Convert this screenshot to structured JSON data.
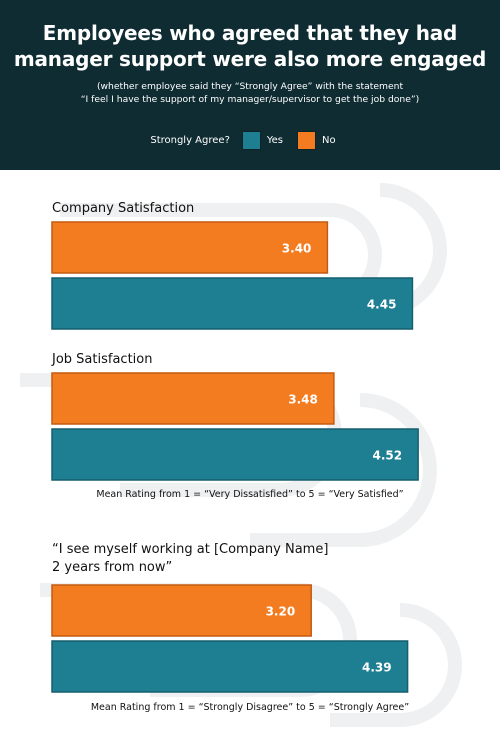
{
  "header": {
    "title_line1": "Employees who agreed that they had",
    "title_line2": "manager support were also more engaged",
    "subtitle_line1": "(whether employee said they “Strongly Agree” with the statement",
    "subtitle_line2": "“I feel I have the support of my manager/supervisor to get the job done”)"
  },
  "legend": {
    "label": "Strongly Agree?",
    "items": [
      {
        "name": "Yes",
        "color": "#1e7f93"
      },
      {
        "name": "No",
        "color": "#f47c20"
      }
    ]
  },
  "chart_data": {
    "type": "bar",
    "orientation": "horizontal",
    "xlim": [
      0,
      5
    ],
    "series_colors": {
      "No": "#f47c20",
      "Yes": "#1e7f93"
    },
    "groups": [
      {
        "title_lines": [
          "Company Satisfaction"
        ],
        "bars": [
          {
            "series": "No",
            "value": 3.4,
            "label": "3.40"
          },
          {
            "series": "Yes",
            "value": 4.45,
            "label": "4.45"
          }
        ],
        "note": ""
      },
      {
        "title_lines": [
          "Job Satisfaction"
        ],
        "bars": [
          {
            "series": "No",
            "value": 3.48,
            "label": "3.48"
          },
          {
            "series": "Yes",
            "value": 4.52,
            "label": "4.52"
          }
        ],
        "note": "Mean Rating from 1 = “Very Dissatisfied” to 5 = “Very Satisfied”"
      },
      {
        "title_lines": [
          "“I see myself working at [Company Name]",
          " 2 years from now”"
        ],
        "bars": [
          {
            "series": "No",
            "value": 3.2,
            "label": "3.20"
          },
          {
            "series": "Yes",
            "value": 4.39,
            "label": "4.39"
          }
        ],
        "note": "Mean Rating from 1 = “Strongly Disagree” to 5 = “Strongly Agree”"
      }
    ]
  }
}
